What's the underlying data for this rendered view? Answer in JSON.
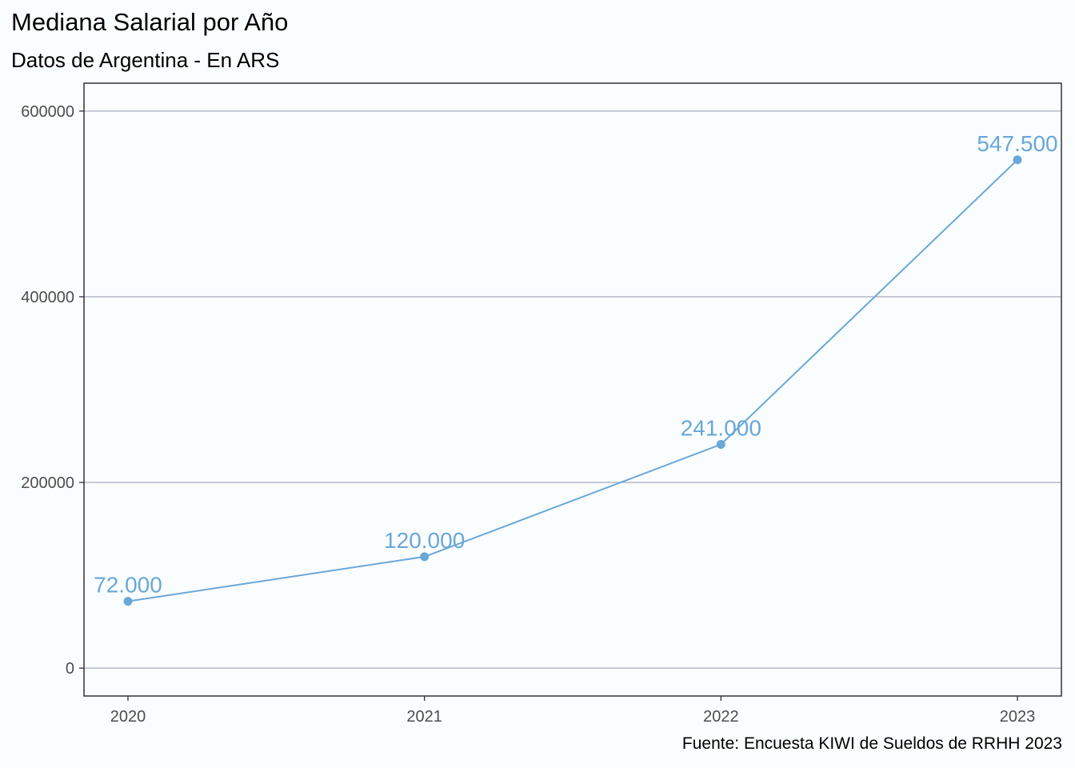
{
  "chart_data": {
    "type": "line",
    "title": "Mediana Salarial por Año",
    "subtitle": "Datos de Argentina - En ARS",
    "caption": "Fuente: Encuesta KIWI de Sueldos de RRHH 2023",
    "categories": [
      "2020",
      "2021",
      "2022",
      "2023"
    ],
    "values": [
      72000,
      120000,
      241000,
      547500
    ],
    "data_labels": [
      "72.000",
      "120.000",
      "241.000",
      "547.500"
    ],
    "y_ticks": [
      "0",
      "200000",
      "400000",
      "600000"
    ],
    "ylim": [
      -30000,
      630000
    ],
    "grid": true,
    "colors": {
      "line": "#6aa7d9",
      "grid": "#aab2c4",
      "axis_text": "#4d4d4d"
    }
  }
}
